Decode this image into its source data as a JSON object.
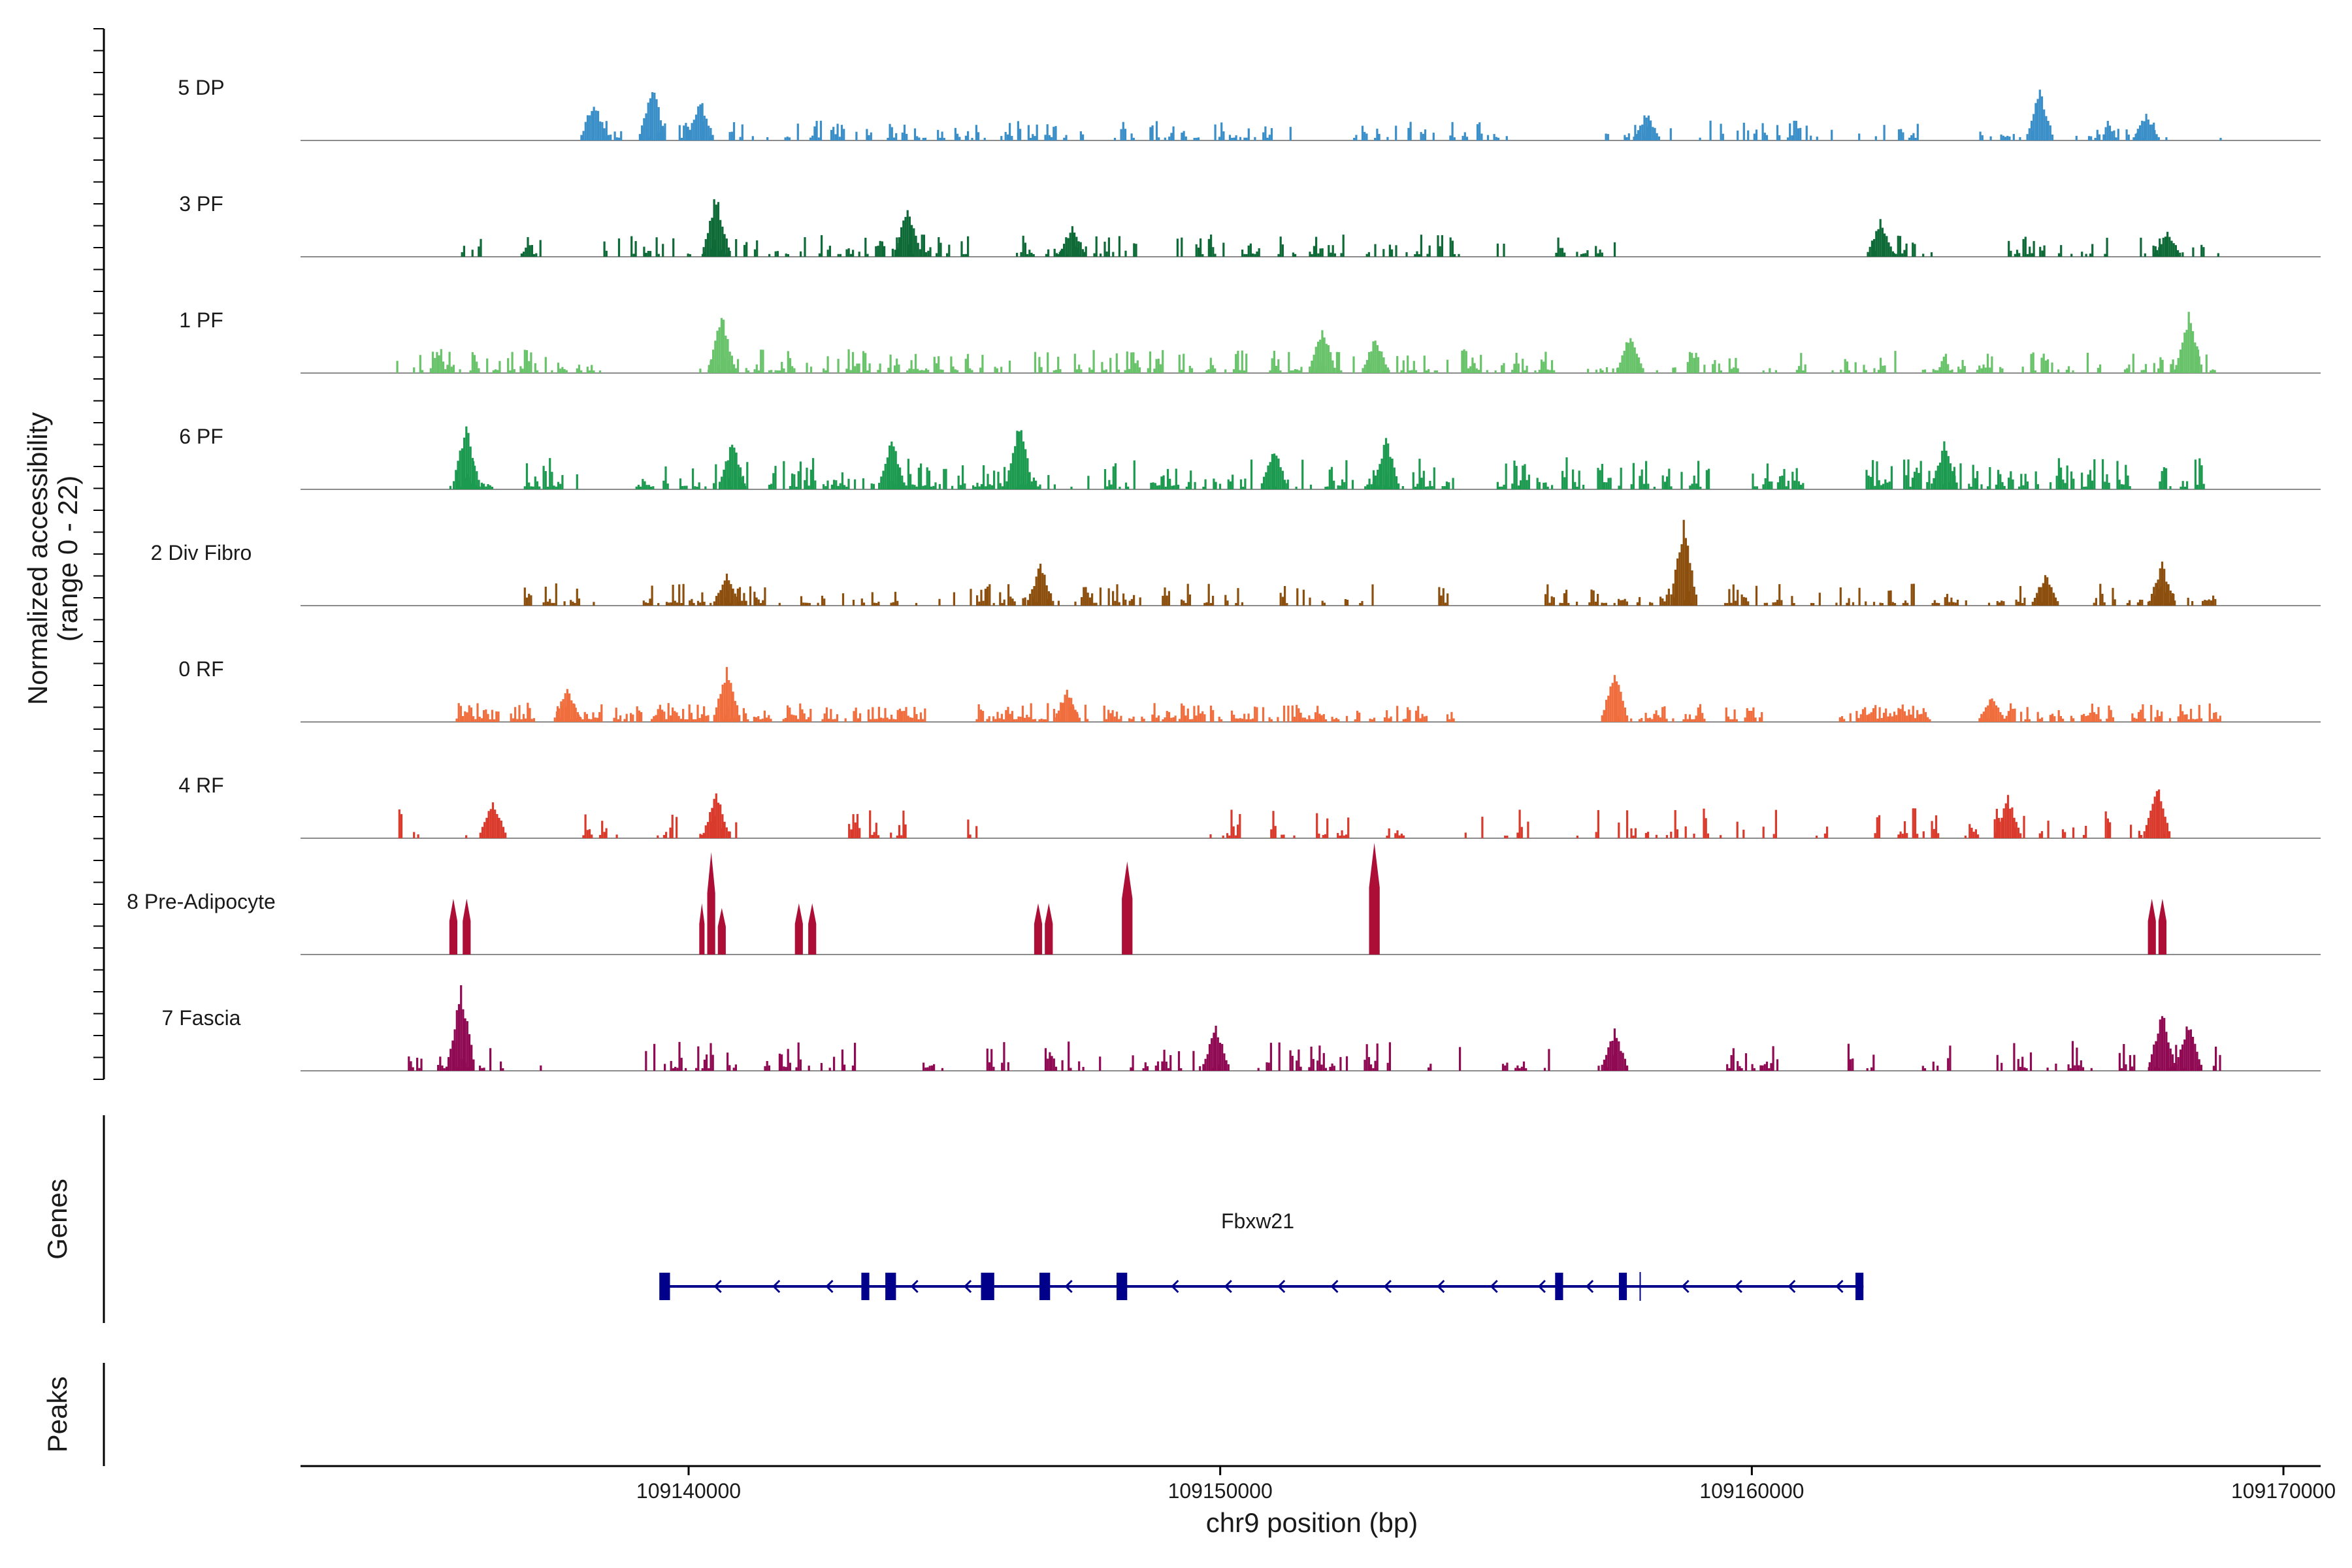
{
  "chart_data": {
    "type": "area",
    "title": "",
    "ylabel_line1": "Normalized accessibility",
    "ylabel_line2": "(range 0 - 22)",
    "xlabel": "chr9 position (bp)",
    "ylim": [
      0,
      22
    ],
    "xlim": [
      109132700,
      109170700
    ],
    "x_ticks": [
      109140000,
      109150000,
      109160000,
      109170000
    ],
    "x_tick_labels": [
      "109140000",
      "109150000",
      "109160000",
      "109170000"
    ],
    "tracks": [
      {
        "name": "5 DP",
        "color": "#3a8fc9",
        "density": 0.55,
        "amp": 0.18,
        "segments": [
          [
            109138200,
            109141500
          ],
          [
            109141800,
            109144800
          ],
          [
            109145000,
            109147400
          ],
          [
            109148000,
            109151500
          ],
          [
            109152500,
            109155600
          ],
          [
            109157000,
            109161500
          ],
          [
            109162000,
            109163200
          ],
          [
            109164200,
            109167900
          ],
          [
            109168800,
            109168950
          ]
        ],
        "peaks": [
          [
            109138200,
            0.45
          ],
          [
            109139300,
            0.6
          ],
          [
            109140200,
            0.45
          ],
          [
            109158000,
            0.3
          ],
          [
            109165400,
            0.55
          ],
          [
            109167400,
            0.3
          ]
        ]
      },
      {
        "name": "3 PF",
        "color": "#0e6a37",
        "density": 0.6,
        "amp": 0.2,
        "segments": [
          [
            109135600,
            109136100
          ],
          [
            109136800,
            109137200
          ],
          [
            109138200,
            109141300
          ],
          [
            109141500,
            109145500
          ],
          [
            109146000,
            109148500
          ],
          [
            109149100,
            109150800
          ],
          [
            109151000,
            109152300
          ],
          [
            109152700,
            109154500
          ],
          [
            109155200,
            109155400
          ],
          [
            109156300,
            109157500
          ],
          [
            109162300,
            109163500
          ],
          [
            109164500,
            109166700
          ],
          [
            109167300,
            109168900
          ]
        ],
        "peaks": [
          [
            109140500,
            0.7
          ],
          [
            109144100,
            0.6
          ],
          [
            109147200,
            0.35
          ],
          [
            109162400,
            0.4
          ],
          [
            109167800,
            0.3
          ]
        ]
      },
      {
        "name": "1 PF",
        "color": "#69c36a",
        "density": 0.7,
        "amp": 0.22,
        "segments": [
          [
            109134500,
            109138400
          ],
          [
            109140200,
            109146200
          ],
          [
            109146500,
            109150600
          ],
          [
            109150800,
            109152600
          ],
          [
            109152800,
            109156300
          ],
          [
            109156900,
            109158300
          ],
          [
            109158500,
            109159800
          ],
          [
            109160200,
            109161000
          ],
          [
            109161500,
            109162700
          ],
          [
            109163200,
            109164700
          ],
          [
            109165000,
            109166600
          ],
          [
            109167000,
            109168700
          ]
        ],
        "peaks": [
          [
            109140600,
            0.65
          ],
          [
            109151900,
            0.5
          ],
          [
            109152900,
            0.4
          ],
          [
            109157700,
            0.45
          ],
          [
            109168200,
            0.65
          ]
        ]
      },
      {
        "name": "6 PF",
        "color": "#1c9a4f",
        "density": 0.75,
        "amp": 0.3,
        "segments": [
          [
            109135500,
            109136300
          ],
          [
            109136900,
            109137900
          ],
          [
            109139000,
            109141100
          ],
          [
            109141300,
            109143500
          ],
          [
            109143800,
            109147200
          ],
          [
            109147500,
            109150700
          ],
          [
            109150900,
            109154400
          ],
          [
            109155200,
            109159200
          ],
          [
            109160000,
            109161000
          ],
          [
            109162100,
            109165400
          ],
          [
            109165600,
            109167100
          ],
          [
            109167500,
            109168600
          ]
        ],
        "peaks": [
          [
            109135800,
            0.7
          ],
          [
            109140800,
            0.55
          ],
          [
            109143800,
            0.55
          ],
          [
            109146200,
            0.75
          ],
          [
            109151000,
            0.45
          ],
          [
            109153100,
            0.55
          ],
          [
            109163600,
            0.5
          ]
        ]
      },
      {
        "name": "2 Div Fibro",
        "color": "#8c4f0d",
        "density": 0.65,
        "amp": 0.2,
        "segments": [
          [
            109136900,
            109138200
          ],
          [
            109138900,
            109141700
          ],
          [
            109142100,
            109144300
          ],
          [
            109144700,
            109148600
          ],
          [
            109148900,
            109150400
          ],
          [
            109151000,
            109152900
          ],
          [
            109154100,
            109154300
          ],
          [
            109156100,
            109159000
          ],
          [
            109159400,
            109160800
          ],
          [
            109161100,
            109165700
          ],
          [
            109166300,
            109168700
          ]
        ],
        "peaks": [
          [
            109140700,
            0.35
          ],
          [
            109146600,
            0.45
          ],
          [
            109158700,
            0.9
          ],
          [
            109165500,
            0.35
          ],
          [
            109167700,
            0.45
          ]
        ]
      },
      {
        "name": "0 RF",
        "color": "#f06e3d",
        "density": 0.85,
        "amp": 0.17,
        "segments": [
          [
            109135500,
            109137100
          ],
          [
            109137400,
            109142300
          ],
          [
            109142500,
            109144500
          ],
          [
            109145400,
            109147600
          ],
          [
            109147800,
            109152600
          ],
          [
            109152800,
            109154400
          ],
          [
            109157200,
            109158400
          ],
          [
            109158500,
            109159100
          ],
          [
            109159500,
            109160200
          ],
          [
            109161600,
            109163400
          ],
          [
            109164300,
            109166800
          ],
          [
            109167100,
            109168800
          ]
        ],
        "peaks": [
          [
            109137700,
            0.4
          ],
          [
            109140700,
            0.6
          ],
          [
            109147100,
            0.35
          ],
          [
            109157400,
            0.55
          ],
          [
            109164500,
            0.3
          ]
        ]
      },
      {
        "name": "4 RF",
        "color": "#d93a2b",
        "density": 0.55,
        "amp": 0.28,
        "segments": [
          [
            109134500,
            109134900
          ],
          [
            109135600,
            109135800
          ],
          [
            109136400,
            109136500
          ],
          [
            109138000,
            109138700
          ],
          [
            109139400,
            109139800
          ],
          [
            109140200,
            109140500
          ],
          [
            109140600,
            109140900
          ],
          [
            109143000,
            109144200
          ],
          [
            109145200,
            109145600
          ],
          [
            109147200,
            109147300
          ],
          [
            109149800,
            109151400
          ],
          [
            109151800,
            109152800
          ],
          [
            109153000,
            109153500
          ],
          [
            109154400,
            109155000
          ],
          [
            109155300,
            109155800
          ],
          [
            109156700,
            109157100
          ],
          [
            109157400,
            109159000
          ],
          [
            109159000,
            109160000
          ],
          [
            109160200,
            109160600
          ],
          [
            109161200,
            109161400
          ],
          [
            109162300,
            109162400
          ],
          [
            109162700,
            109163500
          ],
          [
            109164000,
            109165200
          ],
          [
            109165400,
            109166400
          ],
          [
            109166600,
            109167400
          ],
          [
            109167500,
            109167800
          ],
          [
            109167900,
            109168200
          ]
        ],
        "peaks": [
          [
            109136300,
            0.45
          ],
          [
            109140500,
            0.5
          ],
          [
            109164800,
            0.45
          ],
          [
            109167600,
            0.6
          ]
        ]
      },
      {
        "name": "8 Pre-Adipocyte",
        "color": "#ad0e35",
        "density": 1.0,
        "amp": 0.0,
        "segments": [],
        "spikes": [
          [
            109135500,
            109135650,
            0.6
          ],
          [
            109135750,
            109135900,
            0.6
          ],
          [
            109140200,
            109140300,
            0.55
          ],
          [
            109140350,
            109140500,
            1.1
          ],
          [
            109140550,
            109140700,
            0.5
          ],
          [
            109142000,
            109142150,
            0.55
          ],
          [
            109142250,
            109142400,
            0.55
          ],
          [
            109146500,
            109146650,
            0.55
          ],
          [
            109146700,
            109146850,
            0.55
          ],
          [
            109148150,
            109148350,
            1.0
          ],
          [
            109152800,
            109153000,
            1.2
          ],
          [
            109167450,
            109167600,
            0.6
          ],
          [
            109167650,
            109167800,
            0.6
          ]
        ]
      },
      {
        "name": "7 Fascia",
        "color": "#900a53",
        "density": 0.6,
        "amp": 0.28,
        "segments": [
          [
            109134600,
            109136500
          ],
          [
            109137200,
            109137400
          ],
          [
            109139100,
            109141000
          ],
          [
            109141300,
            109143200
          ],
          [
            109144400,
            109144800
          ],
          [
            109145600,
            109146000
          ],
          [
            109146500,
            109147900
          ],
          [
            109148300,
            109149500
          ],
          [
            109149600,
            109150300
          ],
          [
            109150700,
            109151200
          ],
          [
            109151300,
            109152400
          ],
          [
            109152700,
            109153200
          ],
          [
            109153900,
            109154500
          ],
          [
            109155300,
            109156300
          ],
          [
            109157100,
            109157400
          ],
          [
            109159400,
            109160500
          ],
          [
            109161800,
            109162300
          ],
          [
            109163200,
            109164200
          ],
          [
            109164600,
            109166400
          ],
          [
            109166900,
            109168800
          ]
        ],
        "peaks": [
          [
            109135700,
            0.95
          ],
          [
            109149900,
            0.5
          ],
          [
            109157400,
            0.45
          ],
          [
            109167700,
            0.65
          ],
          [
            109168200,
            0.55
          ]
        ]
      }
    ],
    "genes": {
      "label": "Genes",
      "name": "Fbxw21",
      "color": "#00008b",
      "start": 109139500,
      "end": 109162100,
      "strand": "-",
      "exons": [
        [
          109139450,
          109139650
        ],
        [
          109143250,
          109143400
        ],
        [
          109143700,
          109143900
        ],
        [
          109145500,
          109145750
        ],
        [
          109146600,
          109146800
        ],
        [
          109148050,
          109148250
        ],
        [
          109156300,
          109156450
        ],
        [
          109157500,
          109157650
        ],
        [
          109161950,
          109162100
        ]
      ],
      "arrows": [
        109140500,
        109141600,
        109142600,
        109144200,
        109145200,
        109147100,
        109149100,
        109150100,
        109151100,
        109152100,
        109153100,
        109154100,
        109155100,
        109156000,
        109156900,
        109158700,
        109159700,
        109160700,
        109161600
      ]
    },
    "peaks_track": {
      "label": "Peaks",
      "regions": []
    }
  }
}
